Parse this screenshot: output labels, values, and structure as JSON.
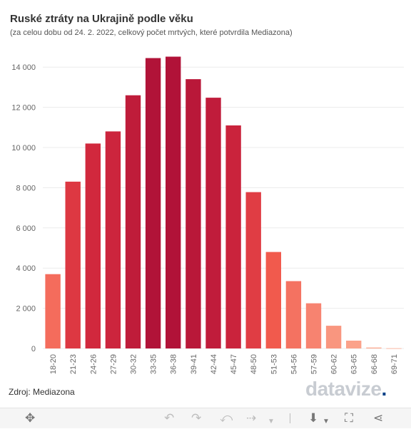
{
  "chart_data": {
    "type": "bar",
    "title": "Ruské ztráty na Ukrajině podle věku",
    "subtitle": "(za celou dobu od 24. 2. 2022, celkový počet mrtvých, které potvrdila Mediazona)",
    "categories": [
      "18-20",
      "21-23",
      "24-26",
      "27-29",
      "30-32",
      "33-35",
      "36-38",
      "39-41",
      "42-44",
      "45-47",
      "48-50",
      "51-53",
      "54-56",
      "57-59",
      "60-62",
      "63-65",
      "66-68",
      "69-71"
    ],
    "values": [
      3700,
      8300,
      10200,
      10800,
      12600,
      14450,
      14520,
      13400,
      12480,
      11100,
      7780,
      4800,
      3350,
      2250,
      1130,
      390,
      45,
      10
    ],
    "yticks": [
      0,
      2000,
      4000,
      6000,
      8000,
      10000,
      12000,
      14000
    ],
    "ytick_labels": [
      "0",
      "2 000",
      "4 000",
      "6 000",
      "8 000",
      "10 000",
      "12 000",
      "14 000"
    ],
    "ylim": [
      0,
      15000
    ],
    "grid": true,
    "legend": "none",
    "color_scale": [
      "#fca88f",
      "#f1594c",
      "#d42a3e",
      "#b01238"
    ]
  },
  "footer": {
    "source": "Zdroj: Mediazona",
    "logo_main": "datavize",
    "logo_accent": "."
  },
  "toolbar": {
    "icons": [
      "move-icon",
      "undo-icon",
      "redo-icon",
      "revert-icon",
      "pause-icon",
      "download-icon",
      "fullscreen-icon",
      "share-icon"
    ]
  }
}
